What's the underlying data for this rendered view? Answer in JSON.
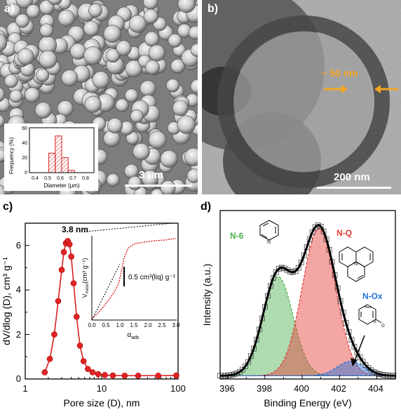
{
  "panel_a": {
    "label": "a)",
    "scale_bar": "3 μm",
    "inset": {
      "ylabel": "Frequency (%)",
      "xlabel": "Diameter (μm)",
      "yticks": [
        "0",
        "20",
        "40",
        "60"
      ],
      "xticks": [
        "0.4",
        "0.5",
        "0.6",
        "0.7",
        "0.8"
      ]
    }
  },
  "panel_b": {
    "label": "b)",
    "annotation": "~ 50 nm",
    "scale_bar": "200 nm"
  },
  "panel_c": {
    "label": "c)",
    "annotation": "3.8 nm",
    "inset": {
      "ylabel_main": "V",
      "ylabel_sub": "meso",
      "ylabel_unit": "(cm³ g⁻¹)",
      "xlabel_main": "α",
      "xlabel_sub": "ads",
      "xticks": [
        "0.0",
        "0.5",
        "1.0",
        "1.5",
        "2.0",
        "2.5",
        "3.0"
      ],
      "scale_text": "0.5 cm³(liq) g⁻¹"
    }
  },
  "panel_d": {
    "label": "d)",
    "peaks": {
      "n6": "N-6",
      "nq": "N-Q",
      "nox": "N-Ox"
    },
    "colors": {
      "n6": "#4caf50",
      "nq": "#e53935",
      "nox": "#1e6fd9"
    }
  },
  "chart_data": [
    {
      "type": "bar",
      "panel": "a-inset",
      "categories": [
        "0.5-0.55",
        "0.55-0.6",
        "0.6-0.65",
        "0.65-0.7"
      ],
      "values": [
        26,
        49,
        20,
        3
      ],
      "xlabel": "Diameter (μm)",
      "ylabel": "Frequency (%)",
      "xlim": [
        0.35,
        0.85
      ],
      "ylim": [
        0,
        60
      ]
    },
    {
      "type": "line",
      "panel": "c",
      "xlabel": "Pore size (D), nm",
      "ylabel": "dV/dlog (D), cm³ g⁻¹",
      "xscale": "log",
      "xlim": [
        1,
        100
      ],
      "ylim": [
        0,
        7
      ],
      "xticks": [
        "1",
        "10",
        "100"
      ],
      "yticks": [
        "0",
        "2",
        "4",
        "6"
      ],
      "series": [
        {
          "x": [
            1.8,
            2.1,
            2.4,
            2.7,
            3.0,
            3.2,
            3.4,
            3.6,
            3.8,
            4.0,
            4.3,
            4.7,
            5.2,
            5.8,
            6.6,
            7.6,
            9.0,
            11,
            14,
            20,
            30,
            55,
            95
          ],
          "y": [
            0.3,
            0.9,
            2.0,
            3.5,
            4.9,
            5.7,
            6.1,
            6.2,
            6.05,
            5.5,
            4.3,
            2.8,
            1.5,
            0.8,
            0.45,
            0.3,
            0.22,
            0.18,
            0.16,
            0.15,
            0.15,
            0.15,
            0.16
          ]
        }
      ],
      "inset": {
        "type": "line",
        "xlabel": "αads",
        "ylabel": "Vmeso (cm³ g⁻¹)",
        "xlim": [
          0,
          3
        ],
        "x": [
          0.0,
          0.2,
          0.4,
          0.6,
          0.8,
          0.95,
          1.05,
          1.15,
          1.3,
          1.5,
          1.8,
          2.2,
          2.6,
          3.0
        ],
        "y": [
          0.02,
          0.08,
          0.16,
          0.25,
          0.35,
          0.45,
          0.6,
          0.78,
          0.9,
          0.95,
          0.97,
          0.99,
          1.0,
          1.02
        ]
      }
    },
    {
      "type": "area",
      "panel": "d",
      "xlabel": "Binding Energy (eV)",
      "ylabel": "Intensity (a.u.)",
      "xlim": [
        395.6,
        405
      ],
      "xticks": [
        "396",
        "398",
        "400",
        "402",
        "404"
      ],
      "series": [
        {
          "name": "N-6",
          "center": 398.7,
          "height": 0.62,
          "fwhm": 1.9
        },
        {
          "name": "N-Q",
          "center": 400.9,
          "height": 0.92,
          "fwhm": 2.1
        },
        {
          "name": "N-Ox",
          "center": 402.6,
          "height": 0.09,
          "fwhm": 1.7
        }
      ]
    }
  ]
}
